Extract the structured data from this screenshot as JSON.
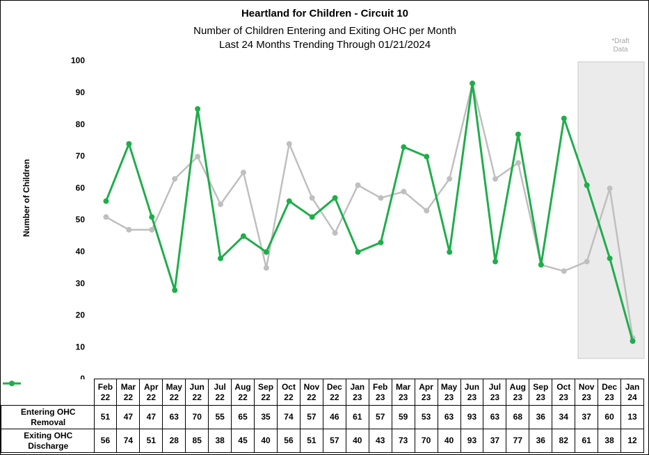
{
  "chart_data": {
    "type": "line",
    "title": "Heartland for Children - Circuit 10",
    "subtitle": [
      "Number of Children Entering and Exiting OHC per Month",
      "Last 24 Months Trending Through 01/21/2024"
    ],
    "annotation": "*Draft Data",
    "y_label": "Number of Children",
    "categories": [
      "Feb 22",
      "Mar 22",
      "Apr 22",
      "May 22",
      "Jun 22",
      "Jul 22",
      "Aug 22",
      "Sep 22",
      "Oct 22",
      "Nov 22",
      "Dec 22",
      "Jan 23",
      "Feb 23",
      "Mar 23",
      "Apr 23",
      "May 23",
      "Jun 23",
      "Jul 23",
      "Aug 23",
      "Sep 23",
      "Oct 23",
      "Nov 23",
      "Dec 23",
      "Jan 24"
    ],
    "series": [
      {
        "name": "Entering OHC Removal",
        "color": "#bfbfbf",
        "values": [
          51,
          47,
          47,
          63,
          70,
          55,
          65,
          35,
          74,
          57,
          46,
          61,
          57,
          59,
          53,
          63,
          93,
          63,
          68,
          36,
          34,
          37,
          60,
          13
        ]
      },
      {
        "name": "Exiting OHC Discharge",
        "color": "#1fad4b",
        "values": [
          56,
          74,
          51,
          28,
          85,
          38,
          45,
          40,
          56,
          51,
          57,
          40,
          43,
          73,
          70,
          40,
          93,
          37,
          77,
          36,
          82,
          61,
          38,
          12
        ]
      }
    ],
    "ylim": [
      0,
      100
    ],
    "yticks": [
      0,
      10,
      20,
      30,
      40,
      50,
      60,
      70,
      80,
      90,
      100
    ],
    "grid": false
  }
}
